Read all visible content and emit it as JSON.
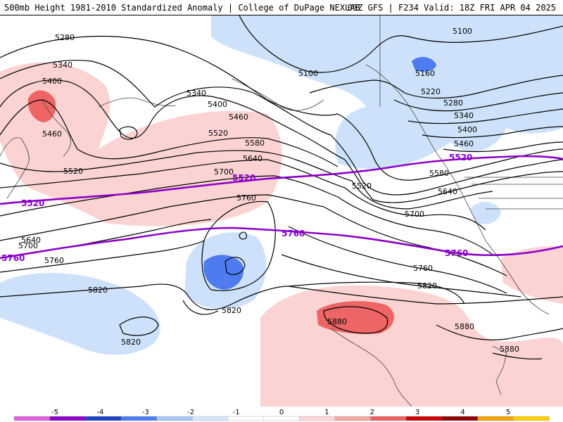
{
  "header": {
    "left_text": "500mb Height 1981-2010 Standardized Anomaly | College of DuPage NEXLAB",
    "right_text": "00Z GFS | F234 Valid: 18Z FRI APR 04 2025"
  },
  "contours": {
    "black_labels": [
      "5280",
      "5340",
      "5400",
      "5460",
      "5520",
      "5580",
      "5640",
      "5700",
      "5760",
      "5820",
      "5880",
      "5100",
      "5160",
      "5220",
      "5280",
      "5340",
      "5400",
      "5460",
      "5520",
      "5580",
      "5640",
      "5700",
      "5760",
      "5820",
      "5880",
      "5340",
      "5400",
      "5460",
      "5520",
      "5700",
      "5760",
      "5640",
      "5820",
      "5820",
      "5880",
      "5100"
    ],
    "climo_labels": [
      "5520",
      "5520",
      "5520",
      "5760",
      "5760",
      "5760"
    ]
  },
  "legend": {
    "ticks": [
      "-5",
      "-4",
      "-3",
      "-2",
      "-1",
      "0",
      "1",
      "2",
      "3",
      "4",
      "5"
    ],
    "colors": [
      "#e060e0",
      "#8a00c8",
      "#1c3fc0",
      "#4e7cf0",
      "#a6c8f4",
      "#d6e6fa",
      "#ffffff",
      "#ffffff",
      "#fcd6d6",
      "#f4a6a6",
      "#ee6060",
      "#c80000",
      "#900000",
      "#f5a000",
      "#ffd000"
    ]
  },
  "colors": {
    "anomaly_pos_light": "#fcd3d3",
    "anomaly_pos_mid": "#ee6565",
    "anomaly_neg_light": "#cde2fa",
    "anomaly_neg_mid": "#4e7cf0",
    "climo_line": "#8b00c9"
  }
}
